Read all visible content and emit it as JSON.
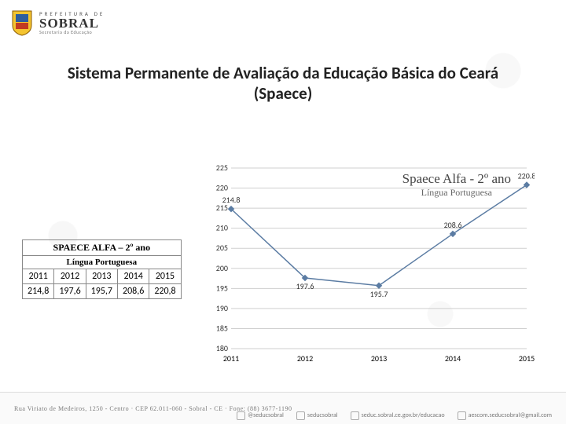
{
  "logo": {
    "line1": "PREFEITURA DE",
    "line2": "SOBRAL",
    "line3": "Secretaria da Educação"
  },
  "title": "Sistema Permanente de Avaliação da Educação Básica do Ceará (Spaece)",
  "chart_title": {
    "line1": "Spaece Alfa - 2º ano",
    "line2": "Língua Portuguesa"
  },
  "table": {
    "header": "SPAECE ALFA – 2º ano",
    "subheader": "Língua Portuguesa",
    "years": [
      "2011",
      "2012",
      "2013",
      "2014",
      "2015"
    ],
    "values": [
      "214,8",
      "197,6",
      "195,7",
      "208,6",
      "220,8"
    ]
  },
  "chart": {
    "type": "line",
    "categories": [
      "2011",
      "2012",
      "2013",
      "2014",
      "2015"
    ],
    "values": [
      214.8,
      197.6,
      195.7,
      208.6,
      220.8
    ],
    "point_labels": [
      "214.8",
      "197.6",
      "195.7",
      "208.6",
      "220.8"
    ],
    "ylim": [
      180,
      225
    ],
    "ytick_step": 5,
    "line_color": "#5b7ca3",
    "marker_color": "#5b7ca3",
    "grid_color": "#cfcfcf",
    "background_color": "#ffffff",
    "label_fontsize": 10,
    "marker_size": 3,
    "line_width": 1.5
  },
  "footer": {
    "address": "Rua Viriato de Medeiros, 1250 - Centro · CEP 62.011-060 - Sobral - CE · Fone: (88) 3677-1190",
    "links": [
      "@seducsobral",
      "seducsobral",
      "seduc.sobral.ce.gov.br/educacao",
      "aescom.seducsobral@gmail.com"
    ]
  }
}
